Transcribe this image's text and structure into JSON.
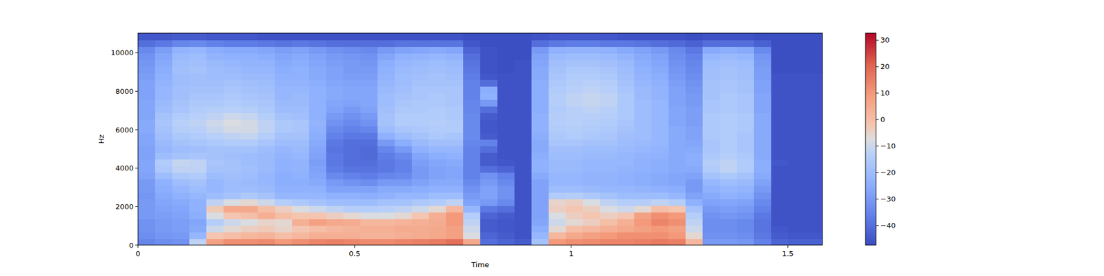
{
  "chart_data": {
    "type": "heatmap",
    "x_label": "Time",
    "y_label": "Hz",
    "xlim": [
      0,
      1.58
    ],
    "ylim": [
      0,
      11025
    ],
    "xticks": [
      0,
      0.5,
      1,
      1.5
    ],
    "yticks": [
      0,
      2000,
      4000,
      6000,
      8000,
      10000
    ],
    "x_bins": [
      0,
      0.0395,
      0.079,
      0.1185,
      0.158,
      0.1975,
      0.237,
      0.2765,
      0.316,
      0.3555,
      0.395,
      0.4345,
      0.474,
      0.5135,
      0.553,
      0.5925,
      0.632,
      0.6715,
      0.711,
      0.7505,
      0.79,
      0.8295,
      0.869,
      0.9085,
      0.948,
      0.9875,
      1.027,
      1.0665,
      1.106,
      1.1455,
      1.185,
      1.2245,
      1.264,
      1.3035,
      1.343,
      1.3825,
      1.422,
      1.4615,
      1.501,
      1.5405,
      1.58
    ],
    "y_bins": [
      0,
      344.5,
      689.1,
      1033.6,
      1378.1,
      1722.7,
      2067.2,
      2411.7,
      2756.3,
      3100.8,
      3445.3,
      3789.8,
      4134.4,
      4478.9,
      4823.4,
      5168,
      5512.5,
      5857,
      6201.6,
      6546.1,
      6890.6,
      7235.2,
      7579.7,
      7924.2,
      8268.8,
      8613.3,
      8957.8,
      9302.3,
      9646.9,
      9991.4,
      10335.9,
      10680.5,
      11025
    ],
    "cells": [
      [
        -35,
        -33,
        -32,
        -32,
        -30,
        -30,
        -30,
        -31,
        -30,
        -30,
        -28,
        -27,
        -27,
        -28,
        -28,
        -27,
        -27,
        -26,
        -26,
        -27,
        -27,
        -27,
        -28,
        -28,
        -28,
        -29,
        -30,
        -31,
        -32,
        -34,
        -40,
        -45
      ],
      [
        -33,
        -31,
        -30,
        -30,
        -29,
        -28,
        -27,
        -26,
        -25,
        -24,
        -20,
        -16,
        -15,
        -20,
        -22,
        -21,
        -19,
        -18,
        -17,
        -18,
        -20,
        -21,
        -22,
        -22,
        -23,
        -24,
        -25,
        -26,
        -27,
        -29,
        -38,
        -45
      ],
      [
        -32,
        -30,
        -29,
        -29,
        -28,
        -27,
        -26,
        -24,
        -22,
        -20,
        -16,
        -12,
        -11,
        -18,
        -20,
        -18,
        -16,
        -14,
        -13,
        -15,
        -17,
        -18,
        -19,
        -19,
        -20,
        -20,
        -19,
        -20,
        -21,
        -23,
        -35,
        -44
      ],
      [
        -12,
        -22,
        -26,
        -27,
        -25,
        -24,
        -24,
        -22,
        -20,
        -18,
        -15,
        -12,
        -12,
        -17,
        -19,
        -17,
        -15,
        -13,
        -12,
        -13,
        -15,
        -16,
        -17,
        -18,
        -19,
        -19,
        -18,
        -19,
        -20,
        -22,
        -34,
        -44
      ],
      [
        8,
        -2,
        -10,
        -14,
        -8,
        -3,
        -12,
        -20,
        -22,
        -22,
        -20,
        -18,
        -17,
        -18,
        -18,
        -16,
        -13,
        -11,
        -10,
        -12,
        -14,
        -16,
        -17,
        -18,
        -19,
        -20,
        -20,
        -21,
        -23,
        -25,
        -36,
        -45
      ],
      [
        12,
        0,
        -6,
        -10,
        -2,
        6,
        -8,
        -18,
        -20,
        -20,
        -19,
        -18,
        -18,
        -19,
        -18,
        -15,
        -12,
        -9,
        -8,
        -10,
        -13,
        -15,
        -16,
        -17,
        -18,
        -20,
        -21,
        -22,
        -24,
        -26,
        -37,
        -45
      ],
      [
        12,
        2,
        -4,
        -8,
        0,
        6,
        -6,
        -16,
        -20,
        -21,
        -20,
        -19,
        -20,
        -20,
        -18,
        -15,
        -11,
        -9,
        -9,
        -11,
        -14,
        -16,
        -17,
        -18,
        -19,
        -21,
        -22,
        -23,
        -24,
        -26,
        -37,
        -45
      ],
      [
        13,
        3,
        -3,
        -5,
        4,
        0,
        -10,
        -18,
        -21,
        -22,
        -22,
        -21,
        -21,
        -21,
        -20,
        -17,
        -14,
        -12,
        -12,
        -14,
        -16,
        -17,
        -18,
        -19,
        -20,
        -21,
        -22,
        -23,
        -25,
        -27,
        -38,
        -46
      ],
      [
        10,
        0,
        -5,
        -6,
        0,
        -4,
        -14,
        -22,
        -24,
        -25,
        -25,
        -24,
        -24,
        -23,
        -22,
        -20,
        -18,
        -16,
        -16,
        -18,
        -20,
        -21,
        -22,
        -22,
        -23,
        -24,
        -25,
        -26,
        -27,
        -29,
        -39,
        -46
      ],
      [
        12,
        2,
        -2,
        4,
        -2,
        -8,
        -16,
        -22,
        -24,
        -25,
        -24,
        -23,
        -23,
        -22,
        -21,
        -20,
        -18,
        -17,
        -17,
        -19,
        -20,
        -21,
        -21,
        -22,
        -23,
        -24,
        -24,
        -25,
        -26,
        -28,
        -38,
        -46
      ],
      [
        14,
        4,
        0,
        8,
        -2,
        -10,
        -18,
        -22,
        -24,
        -26,
        -27,
        -28,
        -29,
        -28,
        -27,
        -26,
        -25,
        -24,
        -23,
        -24,
        -24,
        -24,
        -24,
        -24,
        -25,
        -26,
        -26,
        -27,
        -28,
        -30,
        -39,
        -46
      ],
      [
        15,
        4,
        2,
        6,
        -4,
        -12,
        -20,
        -24,
        -28,
        -30,
        -34,
        -37,
        -38,
        -38,
        -39,
        -38,
        -36,
        -34,
        -32,
        -30,
        -28,
        -27,
        -26,
        -26,
        -27,
        -28,
        -28,
        -29,
        -30,
        -32,
        -40,
        -46
      ],
      [
        14,
        4,
        3,
        5,
        -6,
        -14,
        -20,
        -24,
        -28,
        -32,
        -36,
        -39,
        -40,
        -40,
        -40,
        -40,
        -38,
        -36,
        -34,
        -32,
        -30,
        -28,
        -27,
        -27,
        -28,
        -29,
        -30,
        -30,
        -31,
        -33,
        -40,
        -46
      ],
      [
        13,
        3,
        4,
        2,
        -8,
        -14,
        -20,
        -25,
        -28,
        -33,
        -37,
        -39,
        -40,
        -41,
        -41,
        -40,
        -38,
        -35,
        -32,
        -30,
        -28,
        -27,
        -27,
        -27,
        -28,
        -29,
        -30,
        -31,
        -32,
        -34,
        -40,
        -46
      ],
      [
        13,
        3,
        4,
        2,
        -8,
        -13,
        -18,
        -24,
        -26,
        -30,
        -35,
        -38,
        -38,
        -37,
        -35,
        -30,
        -24,
        -20,
        -18,
        -18,
        -19,
        -20,
        -20,
        -21,
        -22,
        -23,
        -24,
        -25,
        -27,
        -30,
        -40,
        -46
      ],
      [
        14,
        4,
        5,
        3,
        -6,
        -12,
        -18,
        -22,
        -26,
        -30,
        -34,
        -36,
        -36,
        -34,
        -30,
        -25,
        -20,
        -17,
        -15,
        -15,
        -16,
        -17,
        -18,
        -19,
        -20,
        -20,
        -21,
        -22,
        -24,
        -28,
        -39,
        -46
      ],
      [
        15,
        5,
        5,
        4,
        -2,
        -10,
        -16,
        -22,
        -25,
        -28,
        -30,
        -30,
        -29,
        -27,
        -24,
        -21,
        -18,
        -16,
        -15,
        -15,
        -16,
        -16,
        -17,
        -17,
        -18,
        -19,
        -20,
        -21,
        -23,
        -27,
        -39,
        -46
      ],
      [
        16,
        6,
        6,
        5,
        4,
        -6,
        -15,
        -20,
        -24,
        -26,
        -28,
        -28,
        -27,
        -25,
        -22,
        -19,
        -16,
        -15,
        -14,
        -15,
        -15,
        -16,
        -16,
        -17,
        -18,
        -18,
        -19,
        -20,
        -22,
        -26,
        -39,
        -46
      ],
      [
        18,
        8,
        8,
        10,
        10,
        2,
        -12,
        -20,
        -24,
        -26,
        -27,
        -27,
        -26,
        -24,
        -22,
        -19,
        -17,
        -15,
        -15,
        -16,
        -16,
        -17,
        -17,
        -17,
        -18,
        -19,
        -20,
        -21,
        -23,
        -27,
        -39,
        -46
      ],
      [
        6,
        -8,
        -10,
        -12,
        -14,
        -22,
        -28,
        -30,
        -32,
        -34,
        -36,
        -36,
        -36,
        -36,
        -36,
        -35,
        -34,
        -34,
        -34,
        -34,
        -35,
        -35,
        -36,
        -36,
        -36,
        -37,
        -38,
        -39,
        -40,
        -42,
        -45,
        -47
      ],
      [
        -40,
        -42,
        -44,
        -44,
        -42,
        -38,
        -30,
        -28,
        -28,
        -30,
        -32,
        -40,
        -44,
        -44,
        -40,
        -36,
        -44,
        -45,
        -45,
        -44,
        -40,
        -30,
        -24,
        -25,
        -40,
        -45,
        -46,
        -46,
        -46,
        -46,
        -47,
        -47
      ],
      [
        -42,
        -44,
        -45,
        -45,
        -44,
        -40,
        -34,
        -32,
        -32,
        -34,
        -36,
        -42,
        -45,
        -46,
        -46,
        -46,
        -46,
        -46,
        -46,
        -46,
        -46,
        -46,
        -46,
        -46,
        -46,
        -46,
        -47,
        -47,
        -47,
        -47,
        -47,
        -47
      ],
      [
        -44,
        -46,
        -46,
        -46,
        -46,
        -46,
        -46,
        -46,
        -46,
        -46,
        -46,
        -46,
        -46,
        -46,
        -46,
        -46,
        -46,
        -46,
        -46,
        -46,
        -46,
        -46,
        -46,
        -46,
        -46,
        -46,
        -46,
        -46,
        -47,
        -47,
        -47,
        -47
      ],
      [
        -18,
        -22,
        -25,
        -27,
        -28,
        -28,
        -28,
        -28,
        -28,
        -28,
        -26,
        -24,
        -24,
        -25,
        -26,
        -26,
        -25,
        -24,
        -24,
        -24,
        -25,
        -25,
        -25,
        -25,
        -25,
        -26,
        -26,
        -27,
        -28,
        -30,
        -40,
        -46
      ],
      [
        10,
        2,
        -6,
        -10,
        -8,
        -4,
        -5,
        -15,
        -20,
        -22,
        -22,
        -21,
        -21,
        -20,
        -19,
        -17,
        -16,
        -15,
        -14,
        -14,
        -15,
        -14,
        -14,
        -15,
        -16,
        -17,
        -18,
        -19,
        -21,
        -24,
        -38,
        -45
      ],
      [
        12,
        6,
        0,
        -6,
        -4,
        -2,
        -4,
        -14,
        -20,
        -22,
        -22,
        -21,
        -21,
        -20,
        -19,
        -17,
        -15,
        -14,
        -13,
        -13,
        -13,
        -12,
        -12,
        -13,
        -14,
        -15,
        -16,
        -18,
        -20,
        -23,
        -37,
        -45
      ],
      [
        13,
        8,
        2,
        -4,
        -2,
        -4,
        -8,
        -16,
        -21,
        -23,
        -23,
        -22,
        -22,
        -21,
        -20,
        -18,
        -16,
        -15,
        -14,
        -13,
        -12,
        -11,
        -11,
        -12,
        -13,
        -15,
        -16,
        -18,
        -20,
        -23,
        -37,
        -45
      ],
      [
        14,
        10,
        4,
        0,
        -4,
        -8,
        -12,
        -18,
        -22,
        -23,
        -23,
        -22,
        -22,
        -21,
        -20,
        -18,
        -17,
        -16,
        -15,
        -14,
        -13,
        -12,
        -12,
        -13,
        -14,
        -16,
        -17,
        -19,
        -21,
        -24,
        -38,
        -45
      ],
      [
        14,
        12,
        6,
        4,
        -2,
        -10,
        -14,
        -20,
        -22,
        -24,
        -24,
        -23,
        -22,
        -22,
        -21,
        -20,
        -19,
        -18,
        -17,
        -16,
        -16,
        -16,
        -16,
        -17,
        -18,
        -19,
        -20,
        -21,
        -23,
        -26,
        -38,
        -46
      ],
      [
        15,
        12,
        8,
        10,
        8,
        -6,
        -14,
        -20,
        -23,
        -25,
        -25,
        -24,
        -24,
        -23,
        -22,
        -21,
        -20,
        -20,
        -20,
        -20,
        -20,
        -20,
        -21,
        -21,
        -22,
        -23,
        -24,
        -25,
        -26,
        -28,
        -39,
        -46
      ],
      [
        16,
        12,
        10,
        14,
        12,
        0,
        -12,
        -20,
        -24,
        -26,
        -26,
        -25,
        -25,
        -24,
        -23,
        -22,
        -22,
        -22,
        -22,
        -22,
        -22,
        -22,
        -23,
        -23,
        -24,
        -25,
        -26,
        -27,
        -28,
        -30,
        -40,
        -46
      ],
      [
        15,
        10,
        8,
        12,
        10,
        -2,
        -14,
        -22,
        -25,
        -27,
        -27,
        -26,
        -26,
        -26,
        -26,
        -26,
        -26,
        -26,
        -27,
        -27,
        -27,
        -28,
        -28,
        -28,
        -29,
        -30,
        -31,
        -32,
        -33,
        -34,
        -41,
        -46
      ],
      [
        2,
        -6,
        -10,
        -12,
        -14,
        -18,
        -24,
        -28,
        -30,
        -30,
        -28,
        -26,
        -25,
        -25,
        -26,
        -27,
        -28,
        -28,
        -29,
        -29,
        -29,
        -30,
        -30,
        -31,
        -32,
        -33,
        -34,
        -35,
        -36,
        -38,
        -43,
        -47
      ],
      [
        -30,
        -32,
        -33,
        -33,
        -32,
        -30,
        -28,
        -26,
        -24,
        -22,
        -18,
        -15,
        -14,
        -16,
        -17,
        -17,
        -16,
        -16,
        -16,
        -16,
        -17,
        -17,
        -18,
        -18,
        -18,
        -19,
        -19,
        -20,
        -22,
        -26,
        -40,
        -46
      ],
      [
        -30,
        -32,
        -33,
        -33,
        -31,
        -29,
        -27,
        -24,
        -22,
        -20,
        -16,
        -12,
        -12,
        -14,
        -15,
        -15,
        -15,
        -15,
        -15,
        -15,
        -16,
        -16,
        -16,
        -17,
        -17,
        -18,
        -18,
        -19,
        -21,
        -25,
        -40,
        -46
      ],
      [
        -31,
        -33,
        -34,
        -34,
        -32,
        -30,
        -28,
        -25,
        -23,
        -21,
        -18,
        -15,
        -15,
        -16,
        -17,
        -17,
        -17,
        -16,
        -16,
        -16,
        -17,
        -17,
        -17,
        -18,
        -18,
        -19,
        -19,
        -20,
        -22,
        -26,
        -40,
        -46
      ],
      [
        -36,
        -38,
        -39,
        -39,
        -38,
        -36,
        -34,
        -32,
        -30,
        -28,
        -26,
        -25,
        -25,
        -26,
        -26,
        -26,
        -26,
        -26,
        -26,
        -26,
        -27,
        -27,
        -27,
        -28,
        -28,
        -29,
        -29,
        -30,
        -31,
        -34,
        -43,
        -47
      ],
      [
        -42,
        -44,
        -45,
        -46,
        -46,
        -46,
        -46,
        -46,
        -46,
        -46,
        -46,
        -46,
        -45,
        -46,
        -46,
        -46,
        -46,
        -46,
        -46,
        -46,
        -46,
        -46,
        -46,
        -46,
        -46,
        -46,
        -47,
        -47,
        -47,
        -47,
        -47,
        -47
      ],
      [
        -43,
        -45,
        -46,
        -46,
        -46,
        -46,
        -46,
        -46,
        -46,
        -46,
        -46,
        -46,
        -46,
        -46,
        -46,
        -46,
        -46,
        -46,
        -46,
        -46,
        -46,
        -46,
        -46,
        -46,
        -46,
        -46,
        -47,
        -47,
        -47,
        -47,
        -47,
        -47
      ],
      [
        -43,
        -45,
        -46,
        -46,
        -46,
        -46,
        -46,
        -46,
        -46,
        -46,
        -46,
        -46,
        -46,
        -46,
        -46,
        -46,
        -46,
        -46,
        -46,
        -46,
        -46,
        -46,
        -46,
        -46,
        -46,
        -46,
        -47,
        -47,
        -47,
        -47,
        -47,
        -47
      ]
    ],
    "color_range": [
      -47.4,
      32.7
    ],
    "color_ticks": [
      {
        "value": -40,
        "label": "−40"
      },
      {
        "value": -30,
        "label": "−30"
      },
      {
        "value": -20,
        "label": "−20"
      },
      {
        "value": -10,
        "label": "−10"
      },
      0,
      10,
      20,
      30
    ]
  }
}
